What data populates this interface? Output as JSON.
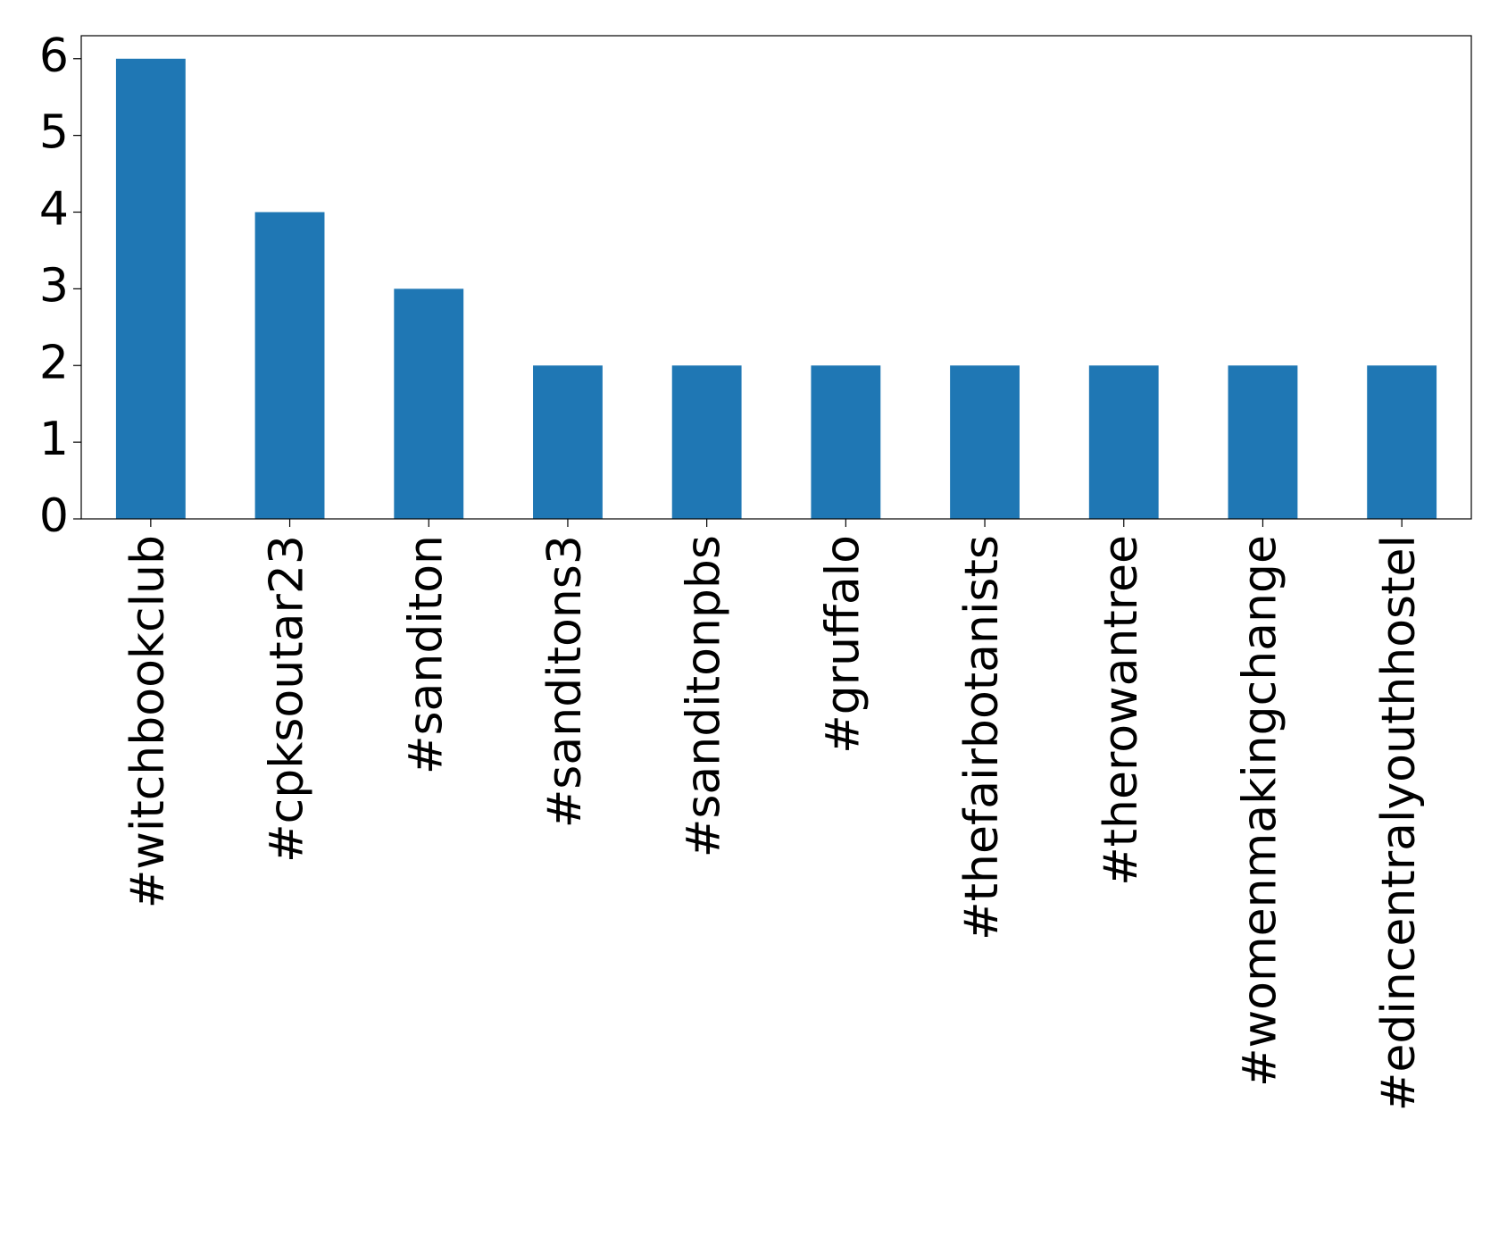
{
  "chart_data": {
    "type": "bar",
    "categories": [
      "#witchbookclub",
      "#cpksoutar23",
      "#sanditon",
      "#sanditons3",
      "#sanditonpbs",
      "#gruffalo",
      "#thefairbotanists",
      "#therowantree",
      "#womenmakingchange",
      "#edincentralyouthhostel"
    ],
    "values": [
      6,
      4,
      3,
      2,
      2,
      2,
      2,
      2,
      2,
      2
    ],
    "color": "#1f77b4",
    "ylim": [
      0,
      6.3
    ],
    "yticks": [
      0,
      1,
      2,
      3,
      4,
      5,
      6
    ],
    "grid": false
  }
}
